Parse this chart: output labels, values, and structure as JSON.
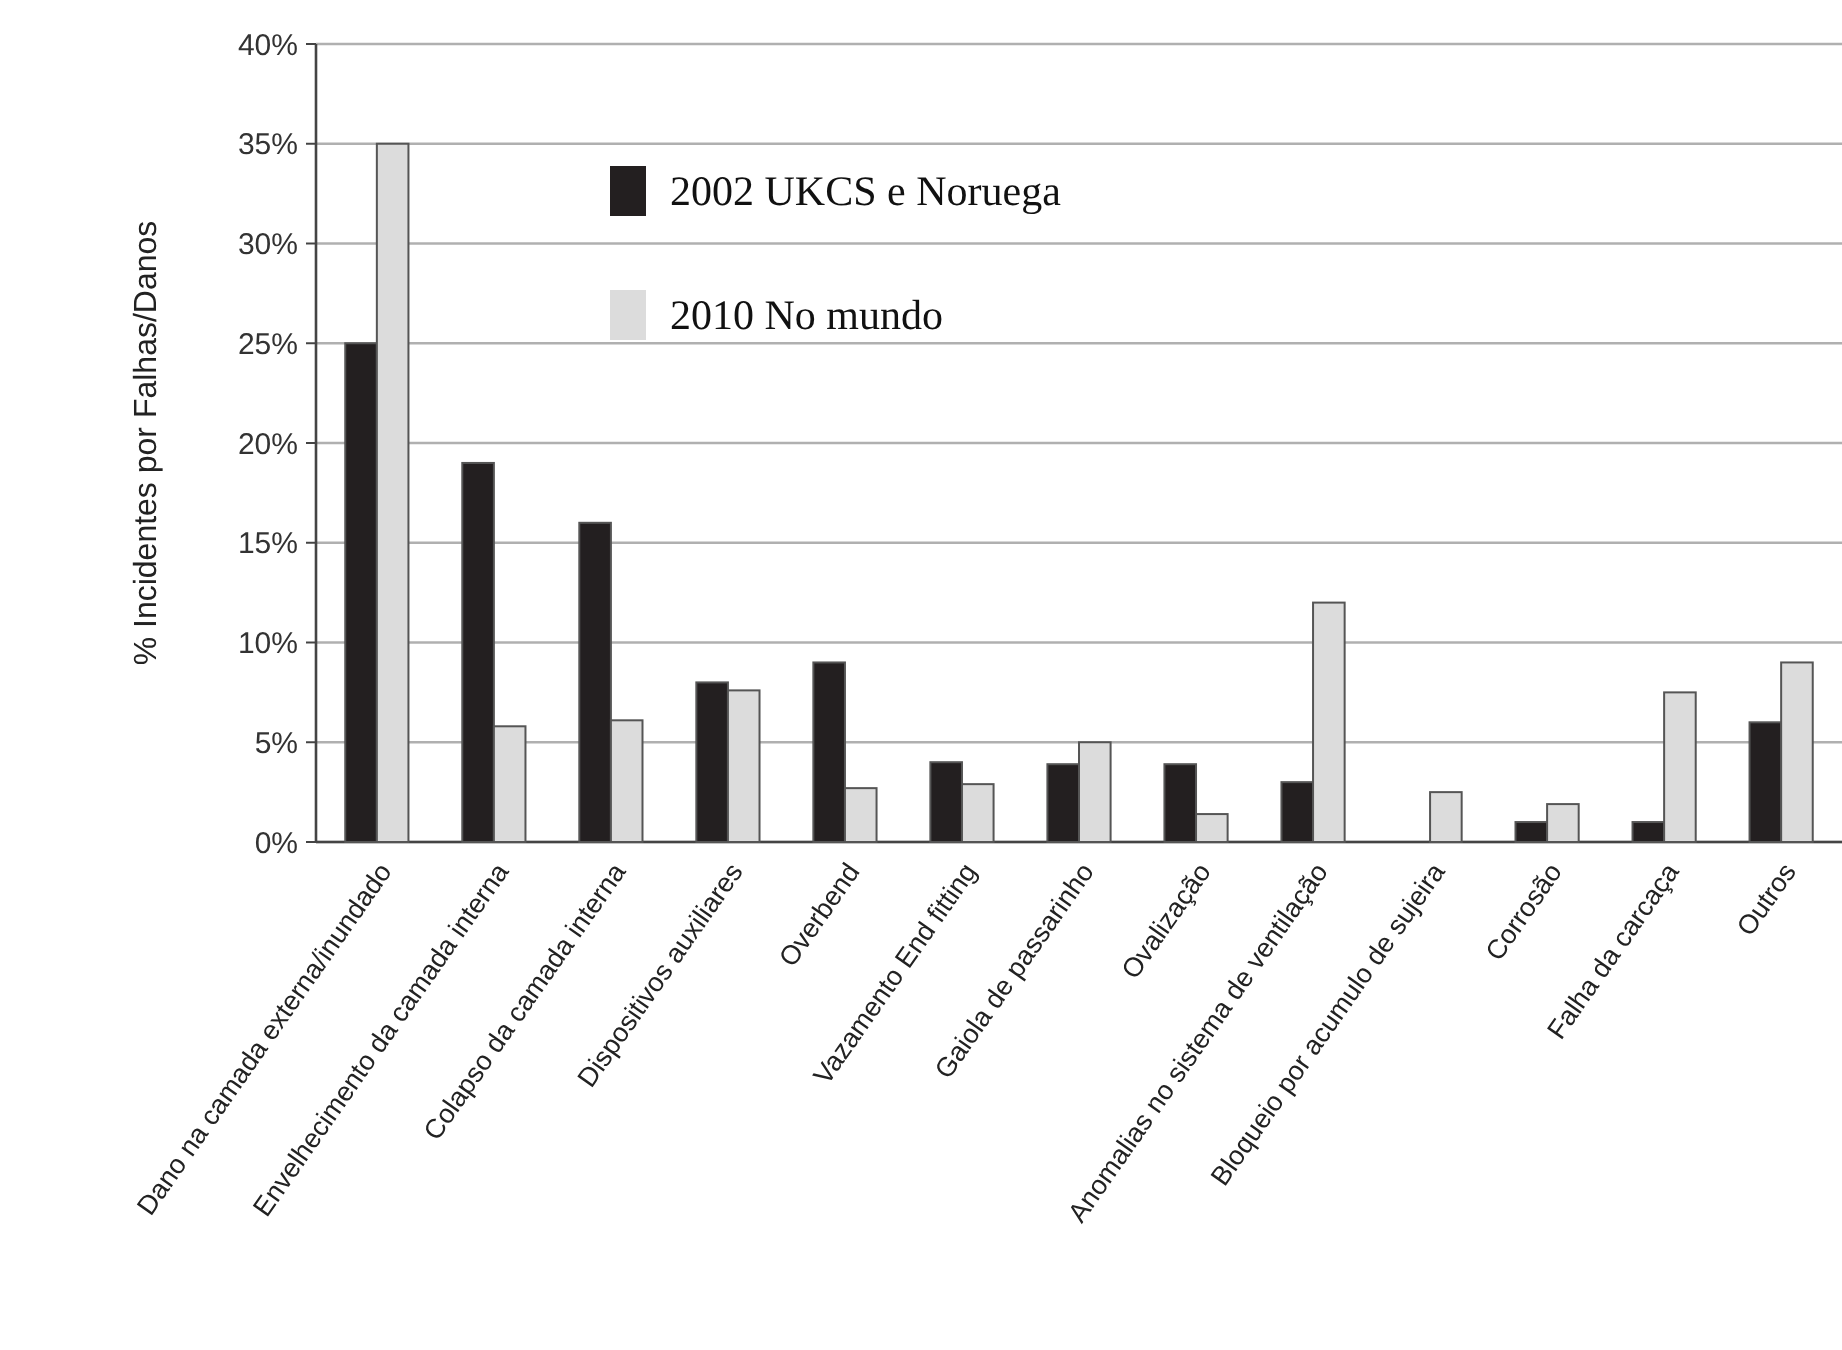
{
  "chart_data": {
    "type": "bar",
    "ylabel": "% Incidentes por Falhas/Danos",
    "categories": [
      "Dano na camada externa/inundado",
      "Envelhecimento da camada interna",
      "Colapso da camada interna",
      "Dispositivos auxiliares",
      "Overbend",
      "Vazamento End fitting",
      "Gaiola de passarinho",
      "Ovalização",
      "Anomalias no sistema de ventilação",
      "Bloqueio por acumulo de sujeira",
      "Corrosão",
      "Falha da carcaça",
      "Outros"
    ],
    "series": [
      {
        "name": "2002 UKCS e Noruega",
        "color": "#231f20",
        "values": [
          25,
          19,
          16,
          8,
          9,
          4,
          3.9,
          3.9,
          3,
          null,
          1,
          1,
          6
        ]
      },
      {
        "name": "2010 No mundo",
        "color": "#dcdcdc",
        "values": [
          35,
          5.8,
          6.1,
          7.6,
          2.7,
          2.9,
          5,
          1.4,
          12,
          2.5,
          1.9,
          7.5,
          9
        ]
      }
    ],
    "ylim": [
      0,
      40
    ],
    "yticks": [
      {
        "value": 0,
        "label": "0%"
      },
      {
        "value": 5,
        "label": "5%"
      },
      {
        "value": 10,
        "label": "10%"
      },
      {
        "value": 15,
        "label": "15%"
      },
      {
        "value": 20,
        "label": "20%"
      },
      {
        "value": 25,
        "label": "25%"
      },
      {
        "value": 30,
        "label": "30%"
      },
      {
        "value": 35,
        "label": "35%"
      },
      {
        "value": 40,
        "label": "40%"
      }
    ],
    "grid": "y",
    "legend": "top"
  }
}
